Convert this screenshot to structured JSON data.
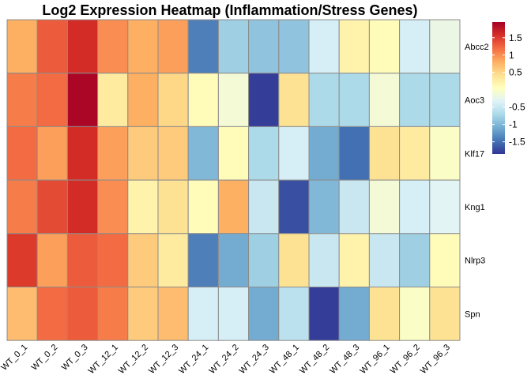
{
  "chart_data": {
    "type": "heatmap",
    "title": "Log2 Expression Heatmap (Inflammation/Stress Genes)",
    "columns": [
      "WT_0_1",
      "WT_0_2",
      "WT_0_3",
      "WT_12_1",
      "WT_12_2",
      "WT_12_3",
      "WT_24_1",
      "WT_24_2",
      "WT_24_3",
      "WT_48_1",
      "WT_48_2",
      "WT_48_3",
      "WT_96_1",
      "WT_96_2",
      "WT_96_3"
    ],
    "rows": [
      "Abcc2",
      "Aoc3",
      "Klf17",
      "Kng1",
      "Nlrp3",
      "Spn"
    ],
    "values": [
      [
        0.8,
        1.3,
        1.6,
        1.0,
        0.8,
        0.9,
        -1.4,
        -0.8,
        -0.9,
        -0.9,
        -0.4,
        0.2,
        0.1,
        -0.4,
        -0.2
      ],
      [
        1.1,
        1.2,
        1.9,
        0.3,
        0.8,
        0.5,
        0.1,
        -0.1,
        -1.8,
        0.4,
        -0.7,
        -0.7,
        -0.1,
        -0.7,
        -0.7
      ],
      [
        1.2,
        0.9,
        1.6,
        0.9,
        0.6,
        0.6,
        -1.0,
        0.1,
        -0.7,
        -0.4,
        -1.1,
        -1.5,
        0.4,
        0.3,
        0.0
      ],
      [
        1.1,
        1.4,
        1.6,
        1.0,
        0.2,
        0.4,
        0.1,
        0.8,
        -0.5,
        -1.7,
        -1.0,
        -0.5,
        -0.1,
        -0.4,
        -0.3
      ],
      [
        1.5,
        0.9,
        1.3,
        1.2,
        0.6,
        0.3,
        -1.4,
        -1.1,
        -0.8,
        0.4,
        -0.5,
        0.2,
        -0.5,
        -0.8,
        0.1
      ],
      [
        0.7,
        1.2,
        1.3,
        1.1,
        0.6,
        0.7,
        -0.4,
        -0.4,
        -1.1,
        -0.6,
        -1.8,
        -1.1,
        0.4,
        0.0,
        0.4
      ]
    ],
    "colorbar": {
      "ticks": [
        1.5,
        1,
        0.5,
        -0.5,
        -1,
        -1.5
      ],
      "tick_labels": [
        "1.5",
        "1",
        "0.5",
        "-0.5",
        "-1",
        "-1.5"
      ],
      "range": [
        -1.85,
        1.95
      ],
      "colors": [
        "#313695",
        "#4575b4",
        "#74add1",
        "#abd9e9",
        "#e0f3f8",
        "#ffffbf",
        "#fee090",
        "#fdae61",
        "#f46d43",
        "#d73027",
        "#a50026"
      ]
    }
  }
}
